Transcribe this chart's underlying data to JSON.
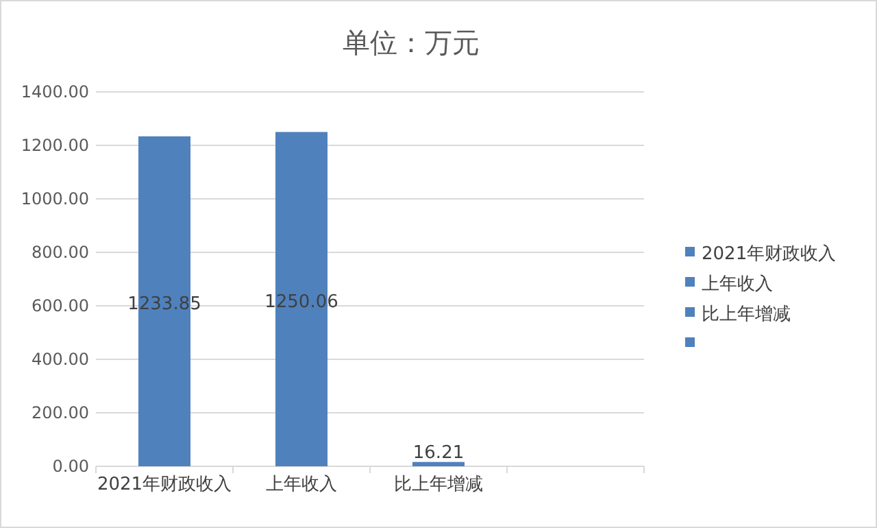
{
  "chart_data": {
    "type": "bar",
    "title": "单位：万元",
    "categories": [
      "2021年财政收入",
      "上年收入",
      "比上年增减",
      null
    ],
    "stacked": true,
    "series": [
      {
        "name": "2021年财政收入",
        "color": "#4f81bd",
        "values": [
          1233.85,
          null,
          null,
          null
        ]
      },
      {
        "name": "上年收入",
        "color": "#4f81bd",
        "values": [
          null,
          1250.06,
          null,
          null
        ]
      },
      {
        "name": "比上年增减",
        "color": "#4f81bd",
        "values": [
          null,
          null,
          16.21,
          null
        ]
      },
      {
        "color": "#4f81bd",
        "values": [
          null,
          null,
          null,
          null
        ]
      }
    ],
    "data_labels": true,
    "ylim": [
      0,
      1400
    ],
    "yticks": [
      {
        "value": 0,
        "label": "0.00"
      },
      {
        "value": 200,
        "label": "200.00"
      },
      {
        "value": 400,
        "label": "400.00"
      },
      {
        "value": 600,
        "label": "600.00"
      },
      {
        "value": 800,
        "label": "800.00"
      },
      {
        "value": 1000,
        "label": "1000.00"
      },
      {
        "value": 1200,
        "label": "1200.00"
      },
      {
        "value": 1400,
        "label": "1400.00"
      }
    ],
    "grid": "y",
    "legend": "right"
  }
}
